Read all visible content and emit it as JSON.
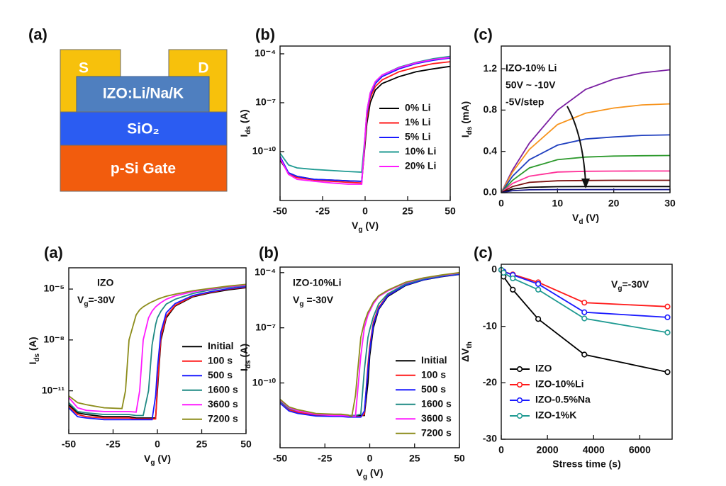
{
  "schematic": {
    "panel": "(a)",
    "source": "S",
    "drain": "D",
    "channel": "IZO:Li/Na/K",
    "dielectric": "SiO₂",
    "gate": "p-Si  Gate"
  },
  "chart_data": [
    {
      "type": "line",
      "panel": "(b)",
      "log_y": true,
      "legend": "center right",
      "xlabel": [
        "V",
        "g",
        " (V)"
      ],
      "ylabel": [
        "I",
        "ds",
        " (A)"
      ],
      "xlim": [
        -50,
        50
      ],
      "xticks": [
        -50,
        -25,
        0,
        25,
        50
      ],
      "ylim": [
        1e-13,
        0.0003
      ],
      "yticks": [
        {
          "value": 1e-10,
          "label": "10⁻¹⁰"
        },
        {
          "value": 1e-07,
          "label": "10⁻⁷"
        },
        {
          "value": 0.0001,
          "label": "10⁻⁴"
        }
      ],
      "x": [
        -50,
        -45,
        -40,
        -30,
        -20,
        -10,
        -2,
        0,
        1,
        3,
        6,
        10,
        20,
        30,
        40,
        50
      ],
      "series": [
        {
          "name": "0%  Li",
          "color": "#000000",
          "values": [
            3e-11,
            5e-12,
            3e-12,
            2e-12,
            1.8e-12,
            1.6e-12,
            1.5e-12,
            3e-10,
            5e-09,
            1e-07,
            6e-07,
            1.5e-06,
            4e-06,
            8e-06,
            1.2e-05,
            1.7e-05
          ]
        },
        {
          "name": "1%  Li",
          "color": "#ff1a1a",
          "values": [
            4e-11,
            4e-12,
            2.5e-12,
            1.8e-12,
            1.5e-12,
            1.3e-12,
            1.2e-12,
            5e-10,
            1e-08,
            2e-07,
            1e-06,
            2.5e-06,
            8e-06,
            1.5e-05,
            2.5e-05,
            3.3e-05
          ]
        },
        {
          "name": "5%  Li",
          "color": "#1a1aff",
          "values": [
            5e-11,
            5e-12,
            3e-12,
            2e-12,
            1.8e-12,
            1.6e-12,
            1.5e-12,
            8e-10,
            2e-08,
            3e-07,
            1.5e-06,
            4e-06,
            1.2e-05,
            2.5e-05,
            4e-05,
            5.5e-05
          ]
        },
        {
          "name": "10%  Li",
          "color": "#1f9a92",
          "values": [
            8e-11,
            1.5e-11,
            1e-11,
            8e-12,
            7e-12,
            6e-12,
            5.5e-12,
            1e-09,
            3e-08,
            4e-07,
            2e-06,
            5e-06,
            1.5e-05,
            3e-05,
            5e-05,
            7e-05
          ]
        },
        {
          "name": "20%  Li",
          "color": "#ff1aff",
          "values": [
            4e-11,
            4e-12,
            2e-12,
            1.5e-12,
            1.2e-12,
            1e-12,
            1e-12,
            1e-09,
            3e-08,
            4e-07,
            2e-06,
            5e-06,
            1.4e-05,
            2.8e-05,
            4.5e-05,
            6e-05
          ]
        }
      ]
    },
    {
      "type": "line",
      "panel": "(c)",
      "xlabel": [
        "V",
        "d",
        " (V)"
      ],
      "ylabel": [
        "I",
        "ds",
        " (mA)"
      ],
      "annotations": [
        "IZO-10% Li",
        "50V ~ -10V",
        "-5V/step"
      ],
      "xlim": [
        0,
        30
      ],
      "xticks": [
        0,
        10,
        20,
        30
      ],
      "ylim": [
        0,
        1.42
      ],
      "yticks": [
        {
          "value": 0,
          "label": "0.0"
        },
        0.4,
        0.8,
        1.2
      ],
      "x": [
        0,
        2,
        5,
        10,
        15,
        20,
        25,
        30
      ],
      "series": [
        {
          "color": "#7a1fa2",
          "values": [
            0,
            0.22,
            0.48,
            0.8,
            1.0,
            1.1,
            1.16,
            1.19
          ]
        },
        {
          "color": "#f7941d",
          "values": [
            0,
            0.2,
            0.42,
            0.66,
            0.77,
            0.82,
            0.85,
            0.86
          ]
        },
        {
          "color": "#1f3fbf",
          "values": [
            0,
            0.16,
            0.32,
            0.46,
            0.52,
            0.54,
            0.555,
            0.56
          ]
        },
        {
          "color": "#2e9a2e",
          "values": [
            0,
            0.12,
            0.24,
            0.32,
            0.345,
            0.355,
            0.358,
            0.36
          ]
        },
        {
          "color": "#ff3399",
          "values": [
            0,
            0.09,
            0.16,
            0.2,
            0.207,
            0.209,
            0.21,
            0.21
          ]
        },
        {
          "color": "#7b1010",
          "values": [
            0,
            0.06,
            0.1,
            0.115,
            0.118,
            0.12,
            0.12,
            0.12
          ]
        },
        {
          "color": "#000000",
          "values": [
            0,
            0.035,
            0.052,
            0.058,
            0.06,
            0.06,
            0.06,
            0.06
          ]
        },
        {
          "color": "#1a1a8c",
          "values": [
            0,
            0.02,
            0.028,
            0.03,
            0.03,
            0.03,
            0.03,
            0.03
          ]
        }
      ]
    },
    {
      "type": "line",
      "panel": "(a)",
      "log_y": true,
      "legend": "lower right",
      "xlabel": [
        "V",
        "g",
        " (V)"
      ],
      "ylabel": [
        "I",
        "ds",
        " (A)"
      ],
      "annotations": [
        "IZO",
        [
          "V",
          "g",
          "=-30V"
        ]
      ],
      "xlim": [
        -50,
        50
      ],
      "xticks": [
        -50,
        -25,
        0,
        25,
        50
      ],
      "ylim": [
        3e-14,
        0.00018
      ],
      "yticks": [
        {
          "value": 1e-11,
          "label": "10⁻¹¹"
        },
        {
          "value": 1e-08,
          "label": "10⁻⁸"
        },
        {
          "value": 1e-05,
          "label": "10⁻⁵"
        }
      ],
      "x": [
        -50,
        -45,
        -40,
        -30,
        -20,
        -18,
        -16,
        -12,
        -10,
        -8,
        -5,
        -3,
        -1,
        0,
        2,
        5,
        10,
        20,
        30,
        40,
        50
      ],
      "series": [
        {
          "name": "Initial",
          "color": "#000000",
          "values": [
            1.5e-12,
            5e-13,
            4e-13,
            3e-13,
            3e-13,
            3e-13,
            3e-13,
            2.5e-13,
            2.5e-13,
            2.5e-13,
            2.5e-13,
            2.5e-13,
            2.5e-13,
            1e-11,
            1e-08,
            2e-07,
            1e-06,
            3.5e-06,
            6e-06,
            9e-06,
            1.2e-05
          ]
        },
        {
          "name": "100 s",
          "color": "#ff1a1a",
          "values": [
            1.2e-12,
            4e-13,
            3e-13,
            2.5e-13,
            2.5e-13,
            2.5e-13,
            2.5e-13,
            2.2e-13,
            2.2e-13,
            2.2e-13,
            2.2e-13,
            2.2e-13,
            2.2e-13,
            2e-11,
            1.5e-08,
            2.5e-07,
            1.1e-06,
            3.8e-06,
            6.5e-06,
            1e-05,
            1.3e-05
          ]
        },
        {
          "name": "500 s",
          "color": "#1a1aff",
          "values": [
            1e-12,
            3e-13,
            2.5e-13,
            2e-13,
            2e-13,
            2e-13,
            2e-13,
            2e-13,
            2e-13,
            2e-13,
            2e-13,
            2e-13,
            5e-12,
            2e-10,
            3e-08,
            4e-07,
            1.4e-06,
            4.2e-06,
            7e-06,
            1.05e-05,
            1.4e-05
          ]
        },
        {
          "name": "1600 s",
          "color": "#1f8a84",
          "values": [
            2e-12,
            6e-13,
            5e-13,
            4e-13,
            4e-13,
            4e-13,
            4e-13,
            3.5e-13,
            3.5e-13,
            3.5e-13,
            1e-11,
            5e-09,
            8e-08,
            2e-07,
            5e-07,
            1.3e-06,
            2.5e-06,
            5.5e-06,
            9e-06,
            1.3e-05,
            1.6e-05
          ]
        },
        {
          "name": "3600 s",
          "color": "#ff1aff",
          "values": [
            4e-12,
            1e-12,
            7e-13,
            6e-13,
            6e-13,
            6e-13,
            6e-13,
            5.5e-13,
            1e-11,
            1e-08,
            2e-07,
            5e-07,
            9e-07,
            1.1e-06,
            1.6e-06,
            2.5e-06,
            4e-06,
            7e-06,
            1e-05,
            1.4e-05,
            1.7e-05
          ]
        },
        {
          "name": "7200 s",
          "color": "#8c8c1a",
          "values": [
            5e-12,
            2e-12,
            1.5e-12,
            1e-12,
            9e-13,
            1e-11,
            1e-08,
            3e-07,
            6e-07,
            9e-07,
            1.4e-06,
            1.8e-06,
            2.2e-06,
            2.5e-06,
            3e-06,
            3.8e-06,
            5e-06,
            8e-06,
            1.1e-05,
            1.5e-05,
            1.9e-05
          ]
        }
      ]
    },
    {
      "type": "line",
      "panel": "(b)",
      "log_y": true,
      "legend": "lower right",
      "xlabel": [
        "V",
        "g",
        " (V)"
      ],
      "ylabel": [
        "I",
        "ds",
        " (A)"
      ],
      "annotations": [
        "IZO-10%Li",
        [
          "V",
          "g",
          " =-30V"
        ]
      ],
      "xlim": [
        -50,
        50
      ],
      "xticks": [
        -50,
        -25,
        0,
        25,
        50
      ],
      "ylim": [
        3e-14,
        0.0002
      ],
      "yticks": [
        {
          "value": 1e-10,
          "label": "10⁻¹⁰"
        },
        {
          "value": 1e-07,
          "label": "10⁻⁷"
        },
        {
          "value": 0.0001,
          "label": "10⁻⁴"
        }
      ],
      "x": [
        -50,
        -45,
        -40,
        -30,
        -20,
        -18,
        -16,
        -12,
        -10,
        -8,
        -5,
        -3,
        -1,
        0,
        2,
        5,
        10,
        20,
        30,
        40,
        50
      ],
      "series": [
        {
          "name": "Initial",
          "color": "#000000",
          "values": [
            1e-11,
            4e-12,
            3e-12,
            2e-12,
            1.8e-12,
            1.8e-12,
            1.8e-12,
            1.7e-12,
            1.7e-12,
            1.7e-12,
            1.7e-12,
            1.7e-12,
            1e-10,
            3e-09,
            1e-07,
            1e-06,
            5e-06,
            2e-05,
            4e-05,
            6e-05,
            8e-05
          ]
        },
        {
          "name": "100 s",
          "color": "#ff1a1a",
          "values": [
            9e-12,
            3.5e-12,
            2.5e-12,
            1.8e-12,
            1.6e-12,
            1.6e-12,
            1.6e-12,
            1.5e-12,
            1.5e-12,
            1.5e-12,
            1.5e-12,
            2e-12,
            1e-09,
            1e-08,
            2e-07,
            1.3e-06,
            6e-06,
            2.2e-05,
            4.3e-05,
            6.5e-05,
            8.5e-05
          ]
        },
        {
          "name": "500 s",
          "color": "#1a1aff",
          "values": [
            8e-12,
            3e-12,
            2.2e-12,
            1.6e-12,
            1.5e-12,
            1.5e-12,
            1.5e-12,
            1.4e-12,
            1.4e-12,
            1.4e-12,
            1.4e-12,
            3e-12,
            5e-10,
            6e-09,
            1.5e-07,
            1.1e-06,
            5.5e-06,
            2.1e-05,
            4.1e-05,
            6.2e-05,
            8.2e-05
          ]
        },
        {
          "name": "1600 s",
          "color": "#1f8a84",
          "values": [
            1e-11,
            4e-12,
            3e-12,
            2e-12,
            1.8e-12,
            1.8e-12,
            1.8e-12,
            1.7e-12,
            1.7e-12,
            1.7e-12,
            2e-12,
            5e-10,
            3e-08,
            8e-08,
            4e-07,
            2e-06,
            7e-06,
            2.4e-05,
            4.5e-05,
            6.8e-05,
            9e-05
          ]
        },
        {
          "name": "3600 s",
          "color": "#ff1aff",
          "values": [
            1.2e-11,
            4.5e-12,
            3e-12,
            2e-12,
            1.7e-12,
            1.7e-12,
            1.7e-12,
            1.6e-12,
            1.6e-12,
            1.5e-12,
            3e-09,
            1e-07,
            5e-07,
            8e-07,
            2e-06,
            5e-06,
            1e-05,
            2.8e-05,
            5e-05,
            7.2e-05,
            9.5e-05
          ]
        },
        {
          "name": "7200 s",
          "color": "#8c8c1a",
          "values": [
            1.3e-11,
            5e-12,
            3.5e-12,
            2.2e-12,
            2e-12,
            2e-12,
            2e-12,
            1.8e-12,
            1.5e-12,
            2e-11,
            3e-08,
            2e-07,
            7e-07,
            1e-06,
            2.5e-06,
            5.5e-06,
            1.1e-05,
            3e-05,
            5.2e-05,
            7.5e-05,
            0.0001
          ]
        }
      ]
    },
    {
      "type": "line",
      "panel": "(c)",
      "markers": true,
      "legend": "lower left",
      "xlabel": "Stress time (s)",
      "ylabel": [
        "ΔV",
        "th"
      ],
      "annotations": [
        [
          "V",
          "g",
          "=-30V"
        ]
      ],
      "xlim": [
        0,
        7400
      ],
      "xticks": [
        0,
        2000,
        4000,
        6000
      ],
      "ylim": [
        -30,
        1
      ],
      "yticks": [
        -30,
        -20,
        -10,
        0
      ],
      "x": [
        0,
        100,
        500,
        1600,
        3600,
        7200
      ],
      "series": [
        {
          "name": "IZO",
          "color": "#000000",
          "values": [
            0,
            -1.2,
            -3.5,
            -8.7,
            -15,
            -18.1
          ]
        },
        {
          "name": "IZO-10%Li",
          "color": "#ff1a1a",
          "values": [
            0,
            -0.3,
            -0.8,
            -2.2,
            -5.8,
            -6.5
          ]
        },
        {
          "name": "IZO-0.5%Na",
          "color": "#1a1aff",
          "values": [
            0,
            -0.3,
            -0.9,
            -2.5,
            -7.5,
            -8.4
          ]
        },
        {
          "name": "IZO-1%K",
          "color": "#1f9a92",
          "values": [
            0,
            -0.5,
            -1.5,
            -3.5,
            -8.6,
            -11.1
          ]
        }
      ]
    }
  ]
}
